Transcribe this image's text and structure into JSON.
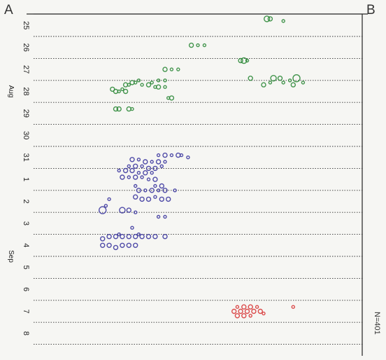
{
  "chart_data": {
    "type": "scatter",
    "title": "",
    "corner_labels": {
      "left": "A",
      "right": "B"
    },
    "side_note": "N=401",
    "y_axis": {
      "days": [
        "25",
        "26",
        "27",
        "28",
        "29",
        "30",
        "31",
        "1",
        "2",
        "3",
        "4",
        "5",
        "6",
        "7",
        "8"
      ],
      "months": [
        {
          "label": "Aug",
          "center_index": 3
        },
        {
          "label": "Sep",
          "center_index": 10.5
        }
      ]
    },
    "grid": {
      "horizontal": "dotted",
      "vertical": false
    },
    "x_range": [
      0,
      1
    ],
    "series": [
      {
        "color": "#2f8a3a",
        "points": [
          [
            0.71,
            24.7,
            4
          ],
          [
            0.72,
            24.7,
            3
          ],
          [
            0.76,
            24.8,
            2
          ],
          [
            0.48,
            25.9,
            3
          ],
          [
            0.5,
            25.9,
            2
          ],
          [
            0.52,
            25.9,
            2
          ],
          [
            0.63,
            26.6,
            3
          ],
          [
            0.64,
            26.6,
            4
          ],
          [
            0.65,
            26.6,
            2
          ],
          [
            0.4,
            27.0,
            3
          ],
          [
            0.42,
            27.0,
            2
          ],
          [
            0.44,
            27.0,
            2
          ],
          [
            0.66,
            27.4,
            3
          ],
          [
            0.73,
            27.4,
            4
          ],
          [
            0.75,
            27.4,
            3
          ],
          [
            0.8,
            27.4,
            5
          ],
          [
            0.78,
            27.5,
            2
          ],
          [
            0.33,
            27.7,
            2
          ],
          [
            0.35,
            27.7,
            3
          ],
          [
            0.37,
            27.8,
            2
          ],
          [
            0.38,
            27.8,
            3
          ],
          [
            0.4,
            27.8,
            2
          ],
          [
            0.28,
            27.7,
            3
          ],
          [
            0.29,
            27.7,
            2
          ],
          [
            0.3,
            27.6,
            3
          ],
          [
            0.31,
            27.6,
            2
          ],
          [
            0.32,
            27.5,
            2
          ],
          [
            0.7,
            27.7,
            3
          ],
          [
            0.72,
            27.6,
            2
          ],
          [
            0.76,
            27.6,
            2
          ],
          [
            0.79,
            27.7,
            3
          ],
          [
            0.82,
            27.6,
            2
          ],
          [
            0.36,
            27.6,
            2
          ],
          [
            0.38,
            27.5,
            2
          ],
          [
            0.4,
            27.5,
            2
          ],
          [
            0.24,
            27.9,
            3
          ],
          [
            0.25,
            28.0,
            3
          ],
          [
            0.26,
            28.0,
            2
          ],
          [
            0.27,
            27.9,
            2
          ],
          [
            0.28,
            28.0,
            3
          ],
          [
            0.41,
            28.3,
            2
          ],
          [
            0.42,
            28.3,
            3
          ],
          [
            0.25,
            28.8,
            3
          ],
          [
            0.26,
            28.8,
            3
          ],
          [
            0.29,
            28.8,
            3
          ],
          [
            0.3,
            28.8,
            2
          ]
        ]
      },
      {
        "color": "#3e3aa0",
        "points": [
          [
            0.38,
            30.9,
            2
          ],
          [
            0.4,
            30.9,
            3
          ],
          [
            0.42,
            30.9,
            2
          ],
          [
            0.44,
            30.9,
            3
          ],
          [
            0.45,
            30.9,
            2
          ],
          [
            0.47,
            31.0,
            2
          ],
          [
            0.3,
            31.1,
            3
          ],
          [
            0.32,
            31.1,
            2
          ],
          [
            0.34,
            31.2,
            3
          ],
          [
            0.36,
            31.2,
            2
          ],
          [
            0.38,
            31.2,
            3
          ],
          [
            0.4,
            31.2,
            2
          ],
          [
            0.29,
            31.4,
            2
          ],
          [
            0.31,
            31.4,
            3
          ],
          [
            0.33,
            31.4,
            2
          ],
          [
            0.35,
            31.5,
            3
          ],
          [
            0.37,
            31.5,
            3
          ],
          [
            0.39,
            31.4,
            2
          ],
          [
            0.26,
            31.6,
            2
          ],
          [
            0.28,
            31.6,
            3
          ],
          [
            0.3,
            31.6,
            3
          ],
          [
            0.32,
            31.7,
            2
          ],
          [
            0.34,
            31.7,
            3
          ],
          [
            0.36,
            31.7,
            2
          ],
          [
            0.27,
            31.9,
            3
          ],
          [
            0.29,
            31.9,
            2
          ],
          [
            0.31,
            31.9,
            3
          ],
          [
            0.33,
            31.9,
            2
          ],
          [
            0.35,
            32.0,
            2
          ],
          [
            0.37,
            32.0,
            3
          ],
          [
            0.31,
            32.3,
            2
          ],
          [
            0.37,
            32.3,
            2
          ],
          [
            0.39,
            32.3,
            3
          ],
          [
            0.32,
            32.5,
            3
          ],
          [
            0.34,
            32.5,
            2
          ],
          [
            0.36,
            32.5,
            3
          ],
          [
            0.38,
            32.5,
            2
          ],
          [
            0.4,
            32.5,
            3
          ],
          [
            0.43,
            32.5,
            2
          ],
          [
            0.31,
            32.8,
            3
          ],
          [
            0.33,
            32.9,
            3
          ],
          [
            0.35,
            32.9,
            3
          ],
          [
            0.37,
            32.8,
            2
          ],
          [
            0.39,
            32.9,
            3
          ],
          [
            0.41,
            32.9,
            3
          ],
          [
            0.23,
            32.9,
            2
          ],
          [
            0.22,
            33.2,
            2
          ],
          [
            0.21,
            33.4,
            5
          ],
          [
            0.27,
            33.4,
            4
          ],
          [
            0.29,
            33.4,
            3
          ],
          [
            0.31,
            33.5,
            2
          ],
          [
            0.38,
            33.7,
            2
          ],
          [
            0.4,
            33.7,
            2
          ],
          [
            0.3,
            34.2,
            2
          ],
          [
            0.21,
            34.7,
            3
          ],
          [
            0.23,
            34.6,
            3
          ],
          [
            0.25,
            34.6,
            3
          ],
          [
            0.27,
            34.6,
            3
          ],
          [
            0.29,
            34.6,
            3
          ],
          [
            0.31,
            34.6,
            3
          ],
          [
            0.33,
            34.6,
            3
          ],
          [
            0.35,
            34.6,
            3
          ],
          [
            0.37,
            34.6,
            3
          ],
          [
            0.4,
            34.6,
            3
          ],
          [
            0.26,
            34.5,
            2
          ],
          [
            0.32,
            34.5,
            2
          ],
          [
            0.21,
            35.0,
            3
          ],
          [
            0.23,
            35.0,
            3
          ],
          [
            0.25,
            35.1,
            3
          ],
          [
            0.27,
            35.0,
            3
          ],
          [
            0.29,
            35.0,
            3
          ],
          [
            0.31,
            35.0,
            3
          ]
        ]
      },
      {
        "color": "#d83a3a",
        "points": [
          [
            0.61,
            38.0,
            3
          ],
          [
            0.63,
            38.0,
            3
          ],
          [
            0.65,
            38.0,
            3
          ],
          [
            0.67,
            38.0,
            3
          ],
          [
            0.69,
            38.0,
            3
          ],
          [
            0.62,
            37.8,
            2
          ],
          [
            0.64,
            37.8,
            3
          ],
          [
            0.66,
            37.8,
            3
          ],
          [
            0.68,
            37.8,
            2
          ],
          [
            0.62,
            38.2,
            3
          ],
          [
            0.64,
            38.2,
            3
          ],
          [
            0.66,
            38.2,
            2
          ],
          [
            0.7,
            38.1,
            2
          ],
          [
            0.79,
            37.8,
            2
          ]
        ]
      }
    ]
  }
}
